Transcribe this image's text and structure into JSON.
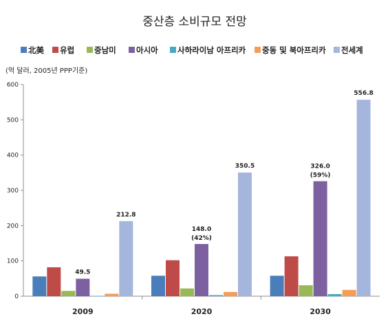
{
  "chart_data": {
    "type": "bar",
    "title": "중산층 소비규모 전망",
    "unit_label": "(억 달러, 2005년 PPP기준)",
    "categories": [
      "2009",
      "2020",
      "2030"
    ],
    "ylim": [
      0,
      600
    ],
    "yticks": [
      "0",
      "100",
      "200",
      "300",
      "400",
      "500",
      "600"
    ],
    "grid": false,
    "legend_position": "top",
    "series": [
      {
        "name": "北美",
        "color": "#4a7ebb",
        "values": [
          56,
          58,
          58
        ]
      },
      {
        "name": "유럽",
        "color": "#be4b48",
        "values": [
          82,
          102,
          113
        ]
      },
      {
        "name": "중남미",
        "color": "#98b954",
        "values": [
          15,
          22,
          31
        ]
      },
      {
        "name": "아시아",
        "color": "#7d60a0",
        "values": [
          49.5,
          148.0,
          326.0
        ]
      },
      {
        "name": "사하라이남 아프리카",
        "color": "#46aac5",
        "values": [
          1,
          3,
          6
        ]
      },
      {
        "name": "중동 및 북아프리카",
        "color": "#f59d56",
        "values": [
          7,
          12,
          18
        ]
      },
      {
        "name": "전세계",
        "color": "#a5b6dc",
        "values": [
          212.8,
          350.5,
          556.8
        ]
      }
    ],
    "data_labels": [
      {
        "category": "2009",
        "series": "아시아",
        "text": "49.5",
        "sub": ""
      },
      {
        "category": "2009",
        "series": "전세계",
        "text": "212.8",
        "sub": ""
      },
      {
        "category": "2020",
        "series": "아시아",
        "text": "148.0",
        "sub": "(42%)"
      },
      {
        "category": "2020",
        "series": "전세계",
        "text": "350.5",
        "sub": ""
      },
      {
        "category": "2030",
        "series": "아시아",
        "text": "326.0",
        "sub": "(59%)"
      },
      {
        "category": "2030",
        "series": "전세계",
        "text": "556.8",
        "sub": ""
      }
    ]
  }
}
